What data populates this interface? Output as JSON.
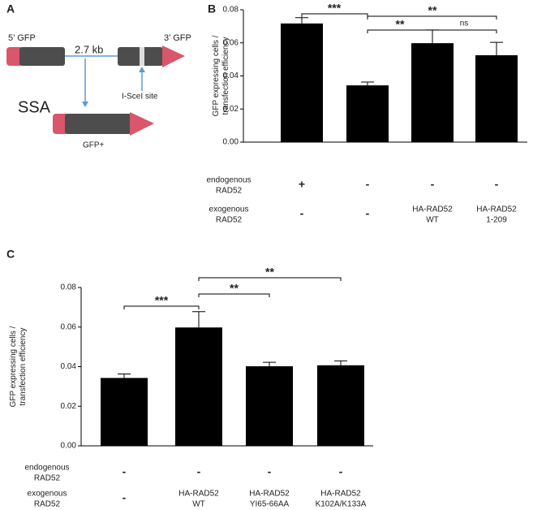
{
  "panel_labels": [
    "A",
    "B",
    "C"
  ],
  "diagram": {
    "left_piece": "5’ GFP",
    "gap": "2.7 kb",
    "right_piece": "3’ GFP",
    "site": "I-SceI site",
    "process": "SSA",
    "product": "GFP+"
  },
  "chart_data": [
    {
      "type": "bar",
      "ylabel": [
        "GFP expressing cells /",
        "transfection efficiency"
      ],
      "values": [
        0.0717,
        0.0343,
        0.0598,
        0.0525
      ],
      "errors": [
        0.0035,
        0.002,
        0.008,
        0.0078
      ],
      "color": "#000000",
      "ylim": [
        0,
        0.08
      ],
      "yticks": [
        {
          "value": 0,
          "label": "0.00"
        },
        0.02,
        0.04,
        0.06,
        0.08
      ],
      "annotations": [
        "***",
        "**",
        "**",
        "ns"
      ],
      "table": [
        {
          "label": [
            "endogenous",
            "RAD52"
          ],
          "cells": [
            [
              "+"
            ],
            [
              "-"
            ],
            [
              "-"
            ],
            [
              "-"
            ]
          ]
        },
        {
          "label": [
            "exogenous",
            "RAD52"
          ],
          "cells": [
            [
              "-"
            ],
            [
              "-"
            ],
            [
              "HA-RAD52",
              "WT"
            ],
            [
              "HA-RAD52",
              "1-209"
            ]
          ]
        }
      ]
    },
    {
      "type": "bar",
      "ylabel": [
        "GFP expressing cells /",
        "transfection efficiency"
      ],
      "values": [
        0.0343,
        0.0598,
        0.0402,
        0.0407
      ],
      "errors": [
        0.002,
        0.008,
        0.002,
        0.0022
      ],
      "color": "#000000",
      "ylim": [
        0,
        0.08
      ],
      "yticks": [
        {
          "value": 0,
          "label": "0.00"
        },
        0.02,
        0.04,
        0.06,
        0.08
      ],
      "annotations": [
        "***",
        "**",
        "**"
      ],
      "table": [
        {
          "label": [
            "endogenous",
            "RAD52"
          ],
          "cells": [
            [
              "-"
            ],
            [
              "-"
            ],
            [
              "-"
            ],
            [
              "-"
            ]
          ]
        },
        {
          "label": [
            "exogenous",
            "RAD52"
          ],
          "cells": [
            [
              "-"
            ],
            [
              "HA-RAD52",
              "WT"
            ],
            [
              "HA-RAD52",
              "YI65-66AA"
            ],
            [
              "HA-RAD52",
              "K102A/K133A"
            ]
          ]
        }
      ]
    }
  ]
}
